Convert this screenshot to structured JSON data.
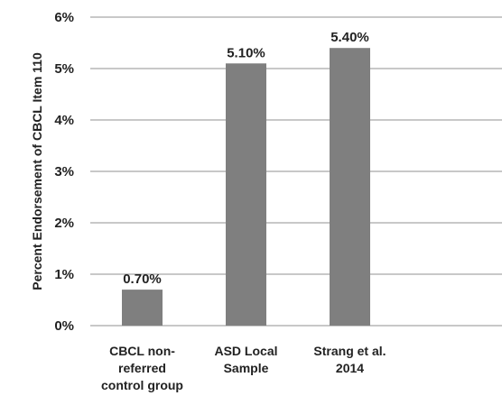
{
  "chart_data": {
    "type": "bar",
    "categories": [
      [
        "CBCL non-",
        "referred",
        "control group"
      ],
      [
        "ASD Local",
        "Sample"
      ],
      [
        "Strang et al.",
        "2014"
      ]
    ],
    "values": [
      0.7,
      5.1,
      5.4
    ],
    "data_labels": [
      "0.70%",
      "5.10%",
      "5.40%"
    ],
    "ylabel": "Percent Endorsement of  CBCL Item 110",
    "ylim": [
      0,
      6
    ],
    "yticks": [
      0,
      1,
      2,
      3,
      4,
      5,
      6
    ],
    "ytick_labels": [
      "0%",
      "1%",
      "2%",
      "3%",
      "4%",
      "5%",
      "6%"
    ],
    "grid": true,
    "legend": "none",
    "colors": {
      "bar": "#7f7f7f",
      "grid": "#a6a6a6",
      "text": "#222222"
    }
  }
}
